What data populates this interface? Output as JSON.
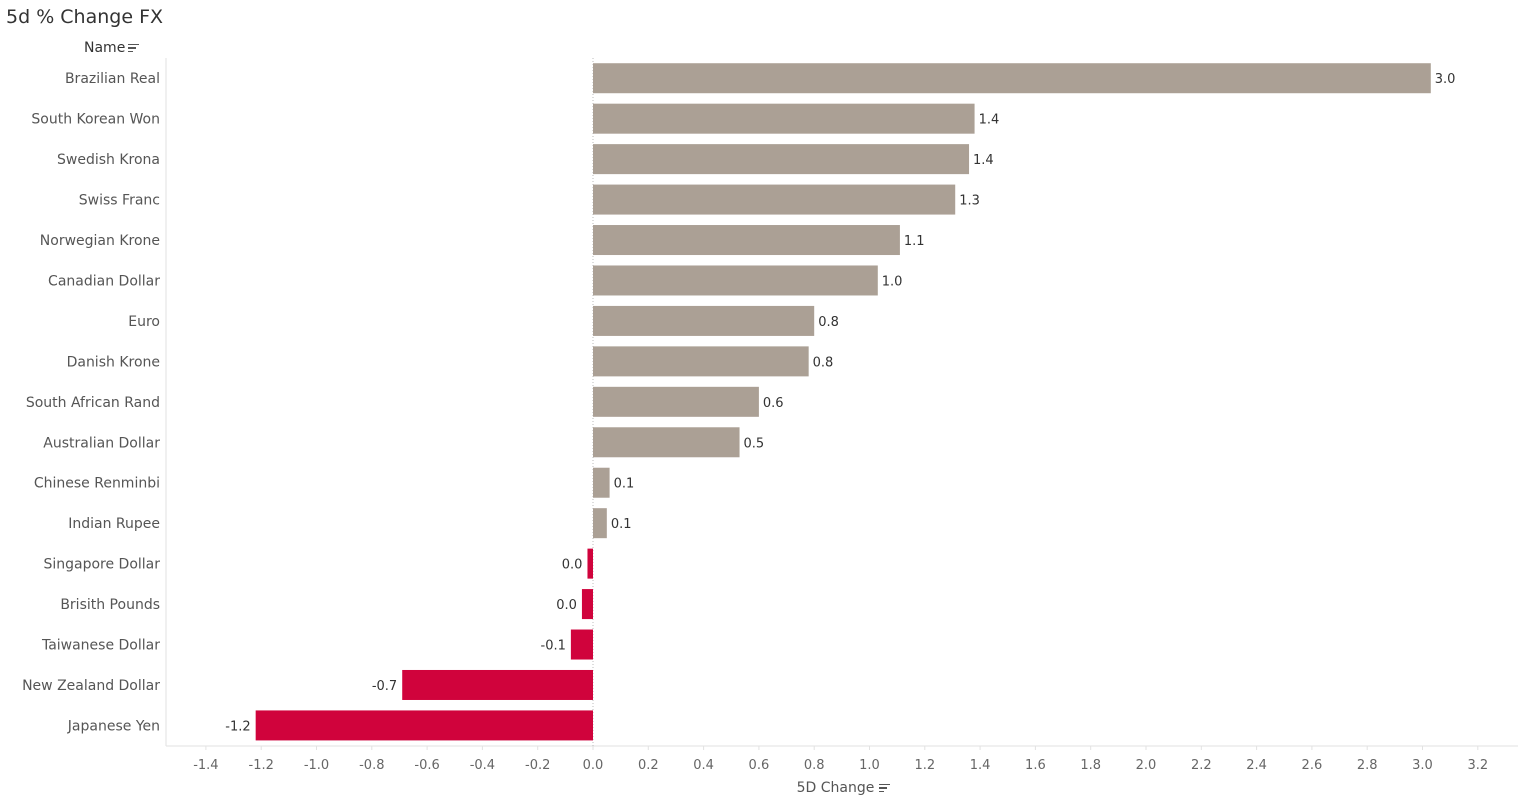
{
  "title": "5d % Change FX",
  "row_header": "Name",
  "chart_data": {
    "type": "bar",
    "orientation": "horizontal",
    "title": "5d % Change FX",
    "xlabel": "5D Change",
    "ylabel": "Name",
    "xlim": [
      -1.5,
      3.3
    ],
    "x_ticks": [
      -1.4,
      -1.2,
      -1.0,
      -0.8,
      -0.6,
      -0.4,
      -0.2,
      0.0,
      0.2,
      0.4,
      0.6,
      0.8,
      1.0,
      1.2,
      1.4,
      1.6,
      1.8,
      2.0,
      2.2,
      2.4,
      2.6,
      2.8,
      3.0,
      3.2
    ],
    "x_tick_labels": [
      "-1.4",
      "-1.2",
      "-1.0",
      "-0.8",
      "-0.6",
      "-0.4",
      "-0.2",
      "0.0",
      "0.2",
      "0.4",
      "0.6",
      "0.8",
      "1.0",
      "1.2",
      "1.4",
      "1.6",
      "1.8",
      "2.0",
      "2.2",
      "2.4",
      "2.6",
      "2.8",
      "3.0",
      "3.2"
    ],
    "categories": [
      "Brazilian Real",
      "South Korean Won",
      "Swedish Krona",
      "Swiss Franc",
      "Norwegian Krone",
      "Canadian Dollar",
      "Euro",
      "Danish Krone",
      "South African Rand",
      "Australian Dollar",
      "Chinese Renminbi",
      "Indian Rupee",
      "Singapore Dollar",
      "Brisith Pounds",
      "Taiwanese Dollar",
      "New Zealand Dollar",
      "Japanese Yen"
    ],
    "values": [
      3.03,
      1.38,
      1.36,
      1.31,
      1.11,
      1.03,
      0.8,
      0.78,
      0.6,
      0.53,
      0.06,
      0.05,
      -0.02,
      -0.04,
      -0.08,
      -0.69,
      -1.22
    ],
    "value_labels": [
      "3.0",
      "1.4",
      "1.4",
      "1.3",
      "1.1",
      "1.0",
      "0.8",
      "0.8",
      "0.6",
      "0.5",
      "0.1",
      "0.1",
      "0.0",
      "0.0",
      "-0.1",
      "-0.7",
      "-1.2"
    ],
    "grid": false,
    "colors": {
      "positive": "#aba095",
      "negative": "#d0033c",
      "zero_line": "#bbbbbb",
      "axis": "#e2e2e2"
    }
  }
}
